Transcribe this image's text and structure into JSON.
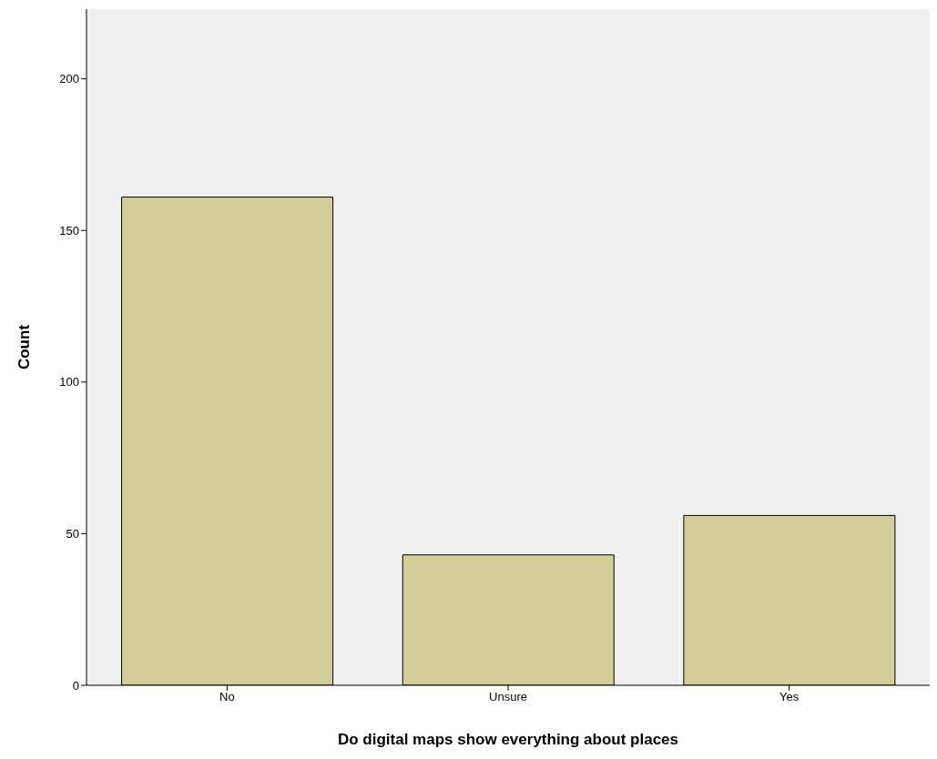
{
  "chart_data": {
    "type": "bar",
    "xlabel": "Do digital maps show everything about places",
    "ylabel": "Count",
    "categories": [
      "No",
      "Unsure",
      "Yes"
    ],
    "values": [
      161,
      43,
      56
    ],
    "color": "#d3ce97",
    "ylim": [
      0,
      223
    ],
    "yticks": [
      0,
      50,
      100,
      150,
      200
    ],
    "grid": false
  }
}
